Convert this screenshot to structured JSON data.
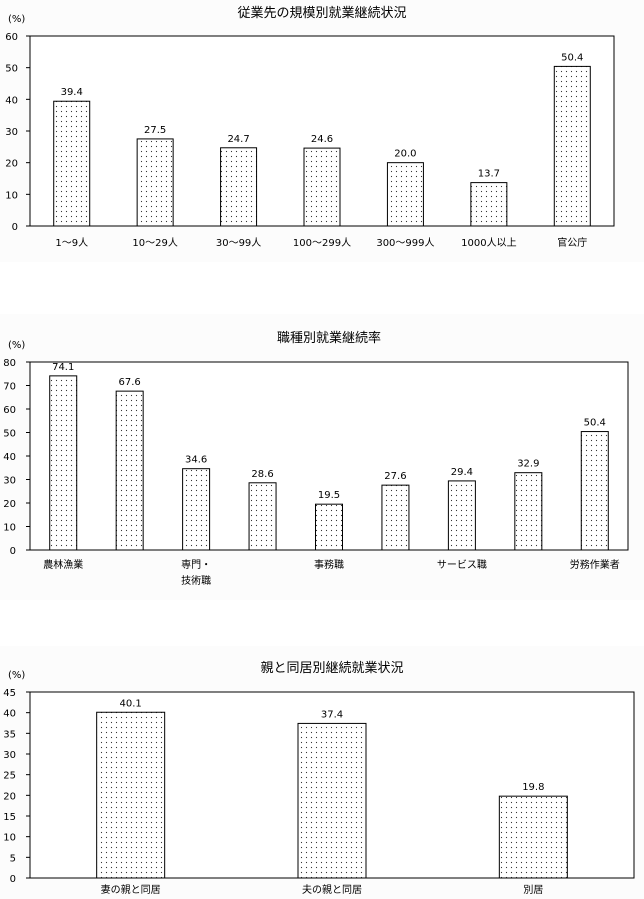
{
  "chart_data": [
    {
      "type": "bar",
      "title": "従業先の規模別就業継続状況",
      "unit": "(%)",
      "xlabel": "",
      "ylabel": "",
      "ylim": [
        0,
        60
      ],
      "yticks": [
        0,
        10,
        20,
        30,
        40,
        50,
        60
      ],
      "categories": [
        [
          "1～9人"
        ],
        [
          "10～29人"
        ],
        [
          "30～99人"
        ],
        [
          "100～299人"
        ],
        [
          "300～999人"
        ],
        [
          "1000人以上"
        ],
        [
          "官公庁"
        ]
      ],
      "values": [
        39.4,
        27.5,
        24.7,
        24.6,
        20.0,
        13.7,
        50.4
      ],
      "data_labels": [
        "39.4",
        "27.5",
        "24.7",
        "24.6",
        "20.0",
        "13.7",
        "50.4"
      ],
      "grid": false,
      "bar_fill": "dotted",
      "background": "#fcfcfc"
    },
    {
      "type": "bar",
      "title": "職種別就業継続率",
      "unit": "(%)",
      "xlabel": "",
      "ylabel": "",
      "ylim": [
        0,
        80
      ],
      "yticks": [
        0,
        10,
        20,
        30,
        40,
        50,
        60,
        70,
        80
      ],
      "categories": [
        [
          "農林漁業"
        ],
        [
          ""
        ],
        [
          "専門・",
          "技術職"
        ],
        [
          ""
        ],
        [
          "事務職"
        ],
        [
          ""
        ],
        [
          "サービス職"
        ],
        [
          ""
        ],
        [
          "労務作業者"
        ]
      ],
      "values": [
        74.1,
        67.6,
        34.6,
        28.6,
        19.5,
        27.6,
        29.4,
        32.9,
        50.4
      ],
      "data_labels": [
        "74.1",
        "67.6",
        "34.6",
        "28.6",
        "19.5",
        "27.6",
        "29.4",
        "32.9",
        "50.4"
      ],
      "grid": false,
      "bar_fill": "dotted",
      "background": "#fcfcfc"
    },
    {
      "type": "bar",
      "title": "親と同居別継続就業状況",
      "unit": "(%)",
      "xlabel": "",
      "ylabel": "",
      "ylim": [
        0,
        45
      ],
      "yticks": [
        0,
        5,
        10,
        15,
        20,
        25,
        30,
        35,
        40,
        45
      ],
      "categories": [
        [
          "妻の親と同居"
        ],
        [
          "夫の親と同居"
        ],
        [
          "別居"
        ]
      ],
      "values": [
        40.1,
        37.4,
        19.8
      ],
      "data_labels": [
        "40.1",
        "37.4",
        "19.8"
      ],
      "grid": false,
      "bar_fill": "dotted",
      "background": "#fcfcfc"
    }
  ]
}
